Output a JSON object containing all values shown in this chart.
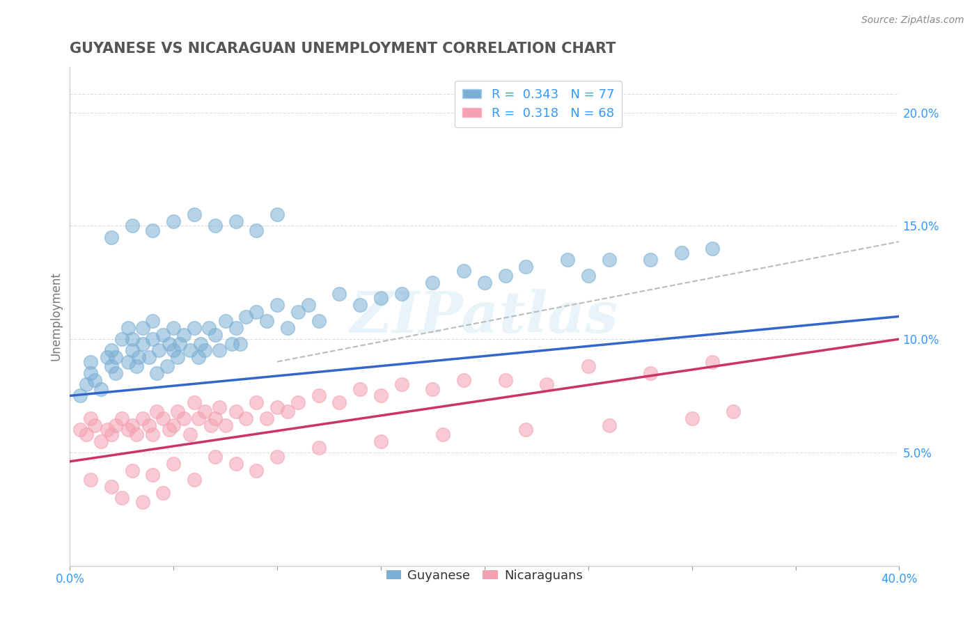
{
  "title": "GUYANESE VS NICARAGUAN UNEMPLOYMENT CORRELATION CHART",
  "source_text": "Source: ZipAtlas.com",
  "ylabel": "Unemployment",
  "xlim": [
    0.0,
    0.4
  ],
  "ylim": [
    0.0,
    0.22
  ],
  "xticks": [
    0.0,
    0.05,
    0.1,
    0.15,
    0.2,
    0.25,
    0.3,
    0.35,
    0.4
  ],
  "xticklabels": [
    "0.0%",
    "",
    "",
    "",
    "",
    "",
    "",
    "",
    "40.0%"
  ],
  "yticks_right": [
    0.05,
    0.1,
    0.15,
    0.2
  ],
  "yticklabels_right": [
    "5.0%",
    "10.0%",
    "15.0%",
    "20.0%"
  ],
  "guyanese_color": "#7bafd4",
  "nicaraguan_color": "#f4a0b0",
  "guyanese_line_color": "#3366cc",
  "nicaraguan_line_color": "#cc3366",
  "dashed_line_color": "#bbbbbb",
  "legend_R1": "0.343",
  "legend_N1": "77",
  "legend_R2": "0.318",
  "legend_N2": "68",
  "legend_label1": "Guyanese",
  "legend_label2": "Nicaraguans",
  "watermark_text": "ZIPatlas",
  "background_color": "#ffffff",
  "title_color": "#555555",
  "title_fontsize": 15,
  "axis_label_color": "#777777",
  "tick_color": "#3399ff",
  "grid_color": "#dddddd",
  "guyanese_x": [
    0.005,
    0.008,
    0.01,
    0.01,
    0.012,
    0.015,
    0.018,
    0.02,
    0.02,
    0.022,
    0.022,
    0.025,
    0.028,
    0.028,
    0.03,
    0.03,
    0.032,
    0.033,
    0.035,
    0.035,
    0.038,
    0.04,
    0.04,
    0.042,
    0.043,
    0.045,
    0.047,
    0.048,
    0.05,
    0.05,
    0.052,
    0.053,
    0.055,
    0.058,
    0.06,
    0.062,
    0.063,
    0.065,
    0.067,
    0.07,
    0.072,
    0.075,
    0.078,
    0.08,
    0.082,
    0.085,
    0.09,
    0.095,
    0.1,
    0.105,
    0.11,
    0.115,
    0.12,
    0.13,
    0.14,
    0.15,
    0.16,
    0.175,
    0.19,
    0.2,
    0.21,
    0.22,
    0.24,
    0.25,
    0.26,
    0.28,
    0.295,
    0.31,
    0.02,
    0.03,
    0.04,
    0.05,
    0.06,
    0.07,
    0.08,
    0.09,
    0.1
  ],
  "guyanese_y": [
    0.075,
    0.08,
    0.085,
    0.09,
    0.082,
    0.078,
    0.092,
    0.088,
    0.095,
    0.085,
    0.092,
    0.1,
    0.105,
    0.09,
    0.095,
    0.1,
    0.088,
    0.092,
    0.105,
    0.098,
    0.092,
    0.1,
    0.108,
    0.085,
    0.095,
    0.102,
    0.088,
    0.098,
    0.105,
    0.095,
    0.092,
    0.098,
    0.102,
    0.095,
    0.105,
    0.092,
    0.098,
    0.095,
    0.105,
    0.102,
    0.095,
    0.108,
    0.098,
    0.105,
    0.098,
    0.11,
    0.112,
    0.108,
    0.115,
    0.105,
    0.112,
    0.115,
    0.108,
    0.12,
    0.115,
    0.118,
    0.12,
    0.125,
    0.13,
    0.125,
    0.128,
    0.132,
    0.135,
    0.128,
    0.135,
    0.135,
    0.138,
    0.14,
    0.145,
    0.15,
    0.148,
    0.152,
    0.155,
    0.15,
    0.152,
    0.148,
    0.155
  ],
  "nicaraguan_x": [
    0.005,
    0.008,
    0.01,
    0.012,
    0.015,
    0.018,
    0.02,
    0.022,
    0.025,
    0.028,
    0.03,
    0.032,
    0.035,
    0.038,
    0.04,
    0.042,
    0.045,
    0.048,
    0.05,
    0.052,
    0.055,
    0.058,
    0.06,
    0.062,
    0.065,
    0.068,
    0.07,
    0.072,
    0.075,
    0.08,
    0.085,
    0.09,
    0.095,
    0.1,
    0.105,
    0.11,
    0.12,
    0.13,
    0.14,
    0.15,
    0.16,
    0.175,
    0.19,
    0.21,
    0.23,
    0.25,
    0.28,
    0.31,
    0.01,
    0.02,
    0.03,
    0.04,
    0.05,
    0.06,
    0.07,
    0.08,
    0.09,
    0.1,
    0.12,
    0.15,
    0.18,
    0.22,
    0.26,
    0.3,
    0.32,
    0.025,
    0.035,
    0.045
  ],
  "nicaraguan_y": [
    0.06,
    0.058,
    0.065,
    0.062,
    0.055,
    0.06,
    0.058,
    0.062,
    0.065,
    0.06,
    0.062,
    0.058,
    0.065,
    0.062,
    0.058,
    0.068,
    0.065,
    0.06,
    0.062,
    0.068,
    0.065,
    0.058,
    0.072,
    0.065,
    0.068,
    0.062,
    0.065,
    0.07,
    0.062,
    0.068,
    0.065,
    0.072,
    0.065,
    0.07,
    0.068,
    0.072,
    0.075,
    0.072,
    0.078,
    0.075,
    0.08,
    0.078,
    0.082,
    0.082,
    0.08,
    0.088,
    0.085,
    0.09,
    0.038,
    0.035,
    0.042,
    0.04,
    0.045,
    0.038,
    0.048,
    0.045,
    0.042,
    0.048,
    0.052,
    0.055,
    0.058,
    0.06,
    0.062,
    0.065,
    0.068,
    0.03,
    0.028,
    0.032
  ],
  "blue_line_x0": 0.0,
  "blue_line_y0": 0.075,
  "blue_line_x1": 0.4,
  "blue_line_y1": 0.11,
  "pink_line_x0": 0.0,
  "pink_line_y0": 0.046,
  "pink_line_x1": 0.4,
  "pink_line_y1": 0.1,
  "dash_line_x0": 0.1,
  "dash_line_y0": 0.09,
  "dash_line_x1": 0.4,
  "dash_line_y1": 0.143
}
